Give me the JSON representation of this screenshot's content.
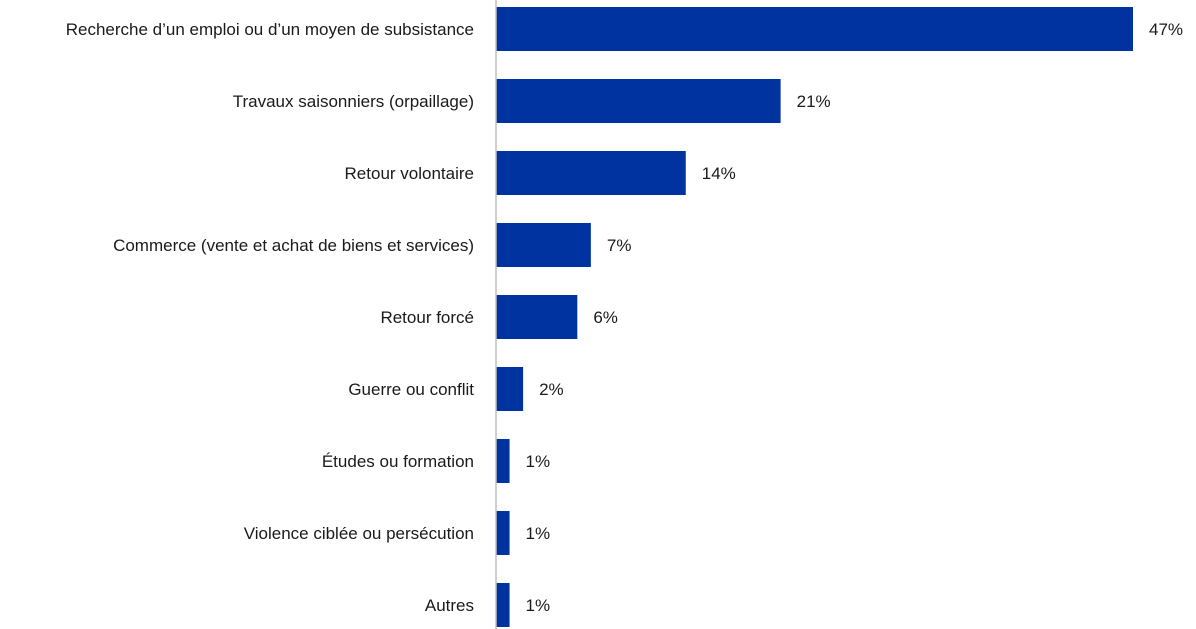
{
  "chart_data": {
    "type": "bar",
    "orientation": "horizontal",
    "categories": [
      "Recherche d’un emploi ou d’un moyen de subsistance",
      "Travaux saisonniers (orpaillage)",
      "Retour volontaire",
      "Commerce (vente et achat de biens et services)",
      "Retour forcé",
      "Guerre ou conflit",
      "Études ou formation",
      "Violence ciblée ou persécution",
      "Autres"
    ],
    "values": [
      47,
      21,
      14,
      7,
      6,
      2,
      1,
      1,
      1
    ],
    "value_labels": [
      "47%",
      "21%",
      "14%",
      "7%",
      "6%",
      "2%",
      "1%",
      "1%",
      "1%"
    ],
    "unit": "%",
    "bar_color": "#0033A0",
    "axis_color": "#bfbfbf",
    "title": "",
    "xlabel": "",
    "ylabel": "",
    "xlim": [
      0,
      47
    ],
    "grid": false,
    "legend": "none"
  }
}
